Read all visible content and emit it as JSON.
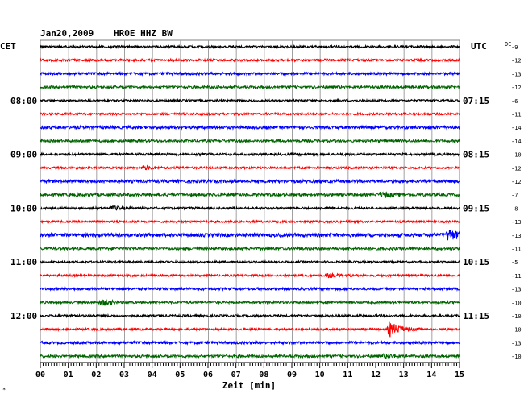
{
  "header": {
    "date": "Jan20,2009",
    "station": "HROE HHZ BW",
    "left_tz": "CET",
    "right_tz": "UTC",
    "dc_label": "DC"
  },
  "corner_mark": "*",
  "chart_data": {
    "type": "line",
    "title": "Jan20,2009   HROE HHZ BW",
    "xlabel": "Zeit [min]",
    "xlim": [
      0,
      15
    ],
    "x_ticks": [
      "00",
      "01",
      "02",
      "03",
      "04",
      "05",
      "06",
      "07",
      "08",
      "09",
      "10",
      "11",
      "12",
      "13",
      "14",
      "15"
    ],
    "grid": true,
    "trace_colors": [
      "#000000",
      "#ff0000",
      "#0000ff",
      "#006400"
    ],
    "left_time_labels": [
      {
        "row": 4,
        "text": "08:00"
      },
      {
        "row": 8,
        "text": "09:00"
      },
      {
        "row": 12,
        "text": "10:00"
      },
      {
        "row": 16,
        "text": "11:00"
      },
      {
        "row": 20,
        "text": "12:00"
      }
    ],
    "right_time_labels": [
      {
        "row": 4,
        "text": "07:15"
      },
      {
        "row": 8,
        "text": "08:15"
      },
      {
        "row": 12,
        "text": "09:15"
      },
      {
        "row": 16,
        "text": "10:15"
      },
      {
        "row": 20,
        "text": "11:15"
      }
    ],
    "dc_offsets": [
      "-9",
      "-12",
      "-13",
      "-12",
      "-6",
      "-11",
      "-14",
      "-14",
      "-10",
      "-12",
      "-12",
      "-7",
      "-8",
      "-13",
      "-13",
      "-11",
      "-5",
      "-11",
      "-13",
      "-10",
      "-10",
      "-10",
      "-13",
      "-10"
    ],
    "events": [
      {
        "row": 14,
        "t_min": 14.6,
        "amp": 7
      },
      {
        "row": 21,
        "t_min": 12.5,
        "amp": 9
      },
      {
        "row": 19,
        "t_min": 2.2,
        "amp": 4
      },
      {
        "row": 11,
        "t_min": 12.2,
        "amp": 3
      },
      {
        "row": 12,
        "t_min": 2.6,
        "amp": 2
      },
      {
        "row": 9,
        "t_min": 3.7,
        "amp": 2
      },
      {
        "row": 17,
        "t_min": 10.3,
        "amp": 2
      },
      {
        "row": 23,
        "t_min": 12.3,
        "amp": 2
      }
    ],
    "noise_amplitude": [
      1.4,
      1.4,
      1.6,
      1.6,
      1.2,
      1.3,
      1.8,
      1.6,
      1.5,
      1.3,
      1.9,
      1.8,
      1.4,
      1.3,
      2.2,
      1.6,
      1.3,
      1.3,
      1.5,
      1.4,
      1.4,
      1.3,
      1.6,
      1.6
    ]
  }
}
